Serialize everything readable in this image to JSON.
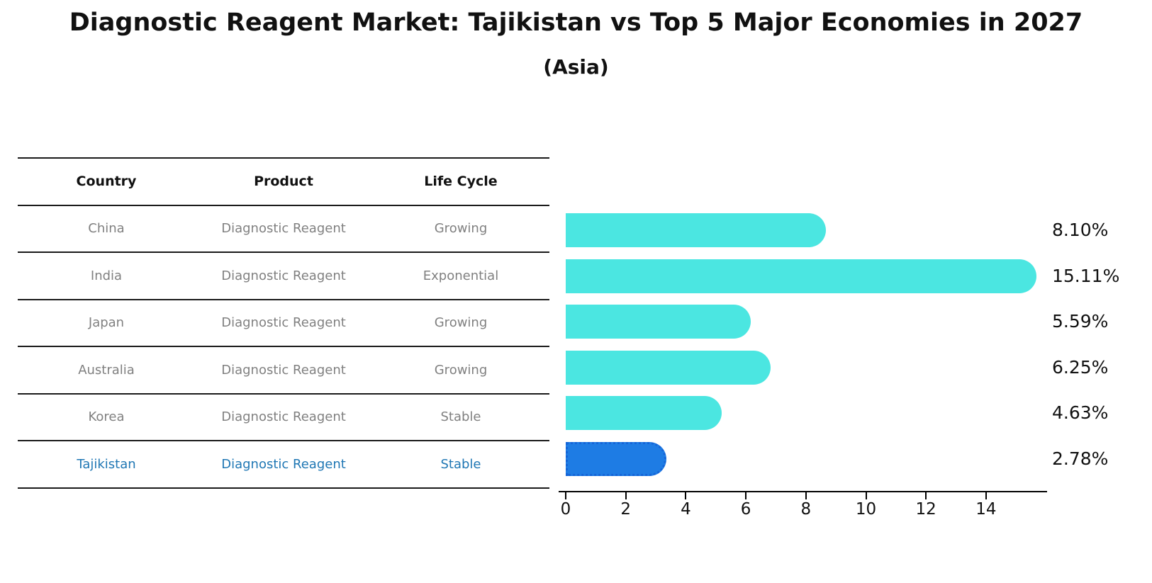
{
  "title": "Diagnostic Reagent Market: Tajikistan vs Top 5 Major Economies in 2027",
  "subtitle": "(Asia)",
  "table": {
    "headers": [
      "Country",
      "Product",
      "Life Cycle"
    ],
    "rows": [
      {
        "country": "China",
        "product": "Diagnostic Reagent",
        "life_cycle": "Growing",
        "highlight": false
      },
      {
        "country": "India",
        "product": "Diagnostic Reagent",
        "life_cycle": "Exponential",
        "highlight": false
      },
      {
        "country": "Japan",
        "product": "Diagnostic Reagent",
        "life_cycle": "Growing",
        "highlight": false
      },
      {
        "country": "Australia",
        "product": "Diagnostic Reagent",
        "life_cycle": "Growing",
        "highlight": false
      },
      {
        "country": "Korea",
        "product": "Diagnostic Reagent",
        "life_cycle": "Stable",
        "highlight": false
      },
      {
        "country": "Tajikistan",
        "product": "Diagnostic Reagent",
        "life_cycle": "Stable",
        "highlight": true
      }
    ]
  },
  "chart_data": {
    "type": "bar",
    "orientation": "horizontal",
    "title": "Diagnostic Reagent Market: Tajikistan vs Top 5 Major Economies in 2027",
    "subtitle": "(Asia)",
    "categories": [
      "China",
      "India",
      "Japan",
      "Australia",
      "Korea",
      "Tajikistan"
    ],
    "values": [
      8.1,
      15.11,
      5.59,
      6.25,
      4.63,
      2.78
    ],
    "value_labels": [
      "8.10%",
      "15.11%",
      "5.59%",
      "6.25%",
      "4.63%",
      "2.78%"
    ],
    "xticks": [
      0,
      2,
      4,
      6,
      8,
      10,
      12,
      14
    ],
    "xlim": [
      0,
      16
    ],
    "xlabel": "",
    "ylabel": "",
    "grid": false,
    "legend": false,
    "highlight_index": 5,
    "colors": {
      "bar": "#4BE6E1",
      "highlight_bar": "#1E7CE4",
      "highlight_bar_border": "#1565D8",
      "value_label": "#111111",
      "axis": "#000000",
      "table_text": "#808080",
      "table_header_text": "#111111",
      "highlight_text": "#1F77B4"
    }
  }
}
